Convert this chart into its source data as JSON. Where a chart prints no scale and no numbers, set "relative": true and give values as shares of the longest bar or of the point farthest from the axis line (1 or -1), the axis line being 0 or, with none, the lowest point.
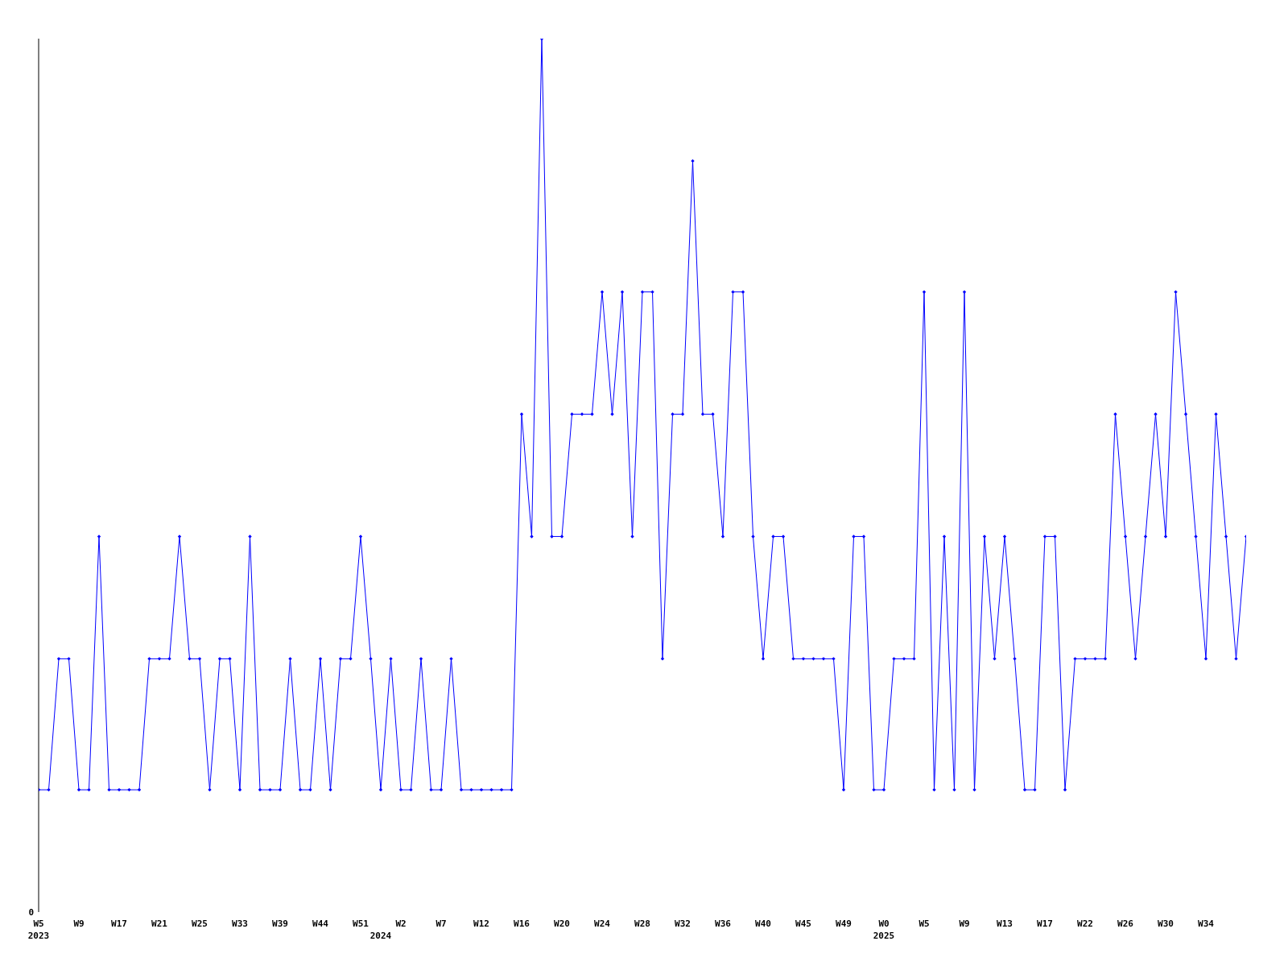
{
  "chart_data": {
    "type": "line",
    "relative": true,
    "annotations": [
      "0"
    ],
    "grid": false,
    "legend": false,
    "marker": "diamond",
    "line_style": "solid",
    "categories": [
      "W5\n2023",
      null,
      null,
      null,
      "W9",
      null,
      null,
      null,
      "W17",
      null,
      null,
      null,
      "W21",
      null,
      null,
      null,
      "W25",
      null,
      null,
      null,
      "W33",
      null,
      null,
      null,
      "W39",
      null,
      null,
      null,
      "W44",
      null,
      null,
      null,
      "W51",
      null,
      "\n2024",
      null,
      "W2",
      null,
      null,
      null,
      "W7",
      null,
      null,
      null,
      "W12",
      null,
      null,
      null,
      "W16",
      null,
      null,
      null,
      "W20",
      null,
      null,
      null,
      "W24",
      null,
      null,
      null,
      "W28",
      null,
      null,
      null,
      "W32",
      null,
      null,
      null,
      "W36",
      null,
      null,
      null,
      "W40",
      null,
      null,
      null,
      "W45",
      null,
      null,
      null,
      "W49",
      null,
      null,
      null,
      "W0\n2025",
      null,
      null,
      null,
      "W5",
      null,
      null,
      null,
      "W9",
      null,
      null,
      null,
      "W13",
      null,
      null,
      null,
      "W17",
      null,
      null,
      null,
      "W22",
      null,
      null,
      null,
      "W26",
      null,
      null,
      null,
      "W30",
      null,
      null,
      null,
      "W34",
      null,
      null,
      null,
      null
    ],
    "series": [
      {
        "color": "#0000ff",
        "values": [
          0.14,
          0.14,
          0.29,
          0.29,
          0.14,
          0.14,
          0.43,
          0.14,
          0.14,
          0.14,
          0.14,
          0.29,
          0.29,
          0.29,
          0.43,
          0.29,
          0.29,
          0.14,
          0.29,
          0.29,
          0.14,
          0.43,
          0.14,
          0.14,
          0.14,
          0.29,
          0.14,
          0.14,
          0.29,
          0.14,
          0.29,
          0.29,
          0.43,
          0.29,
          0.14,
          0.29,
          0.14,
          0.14,
          0.29,
          0.14,
          0.14,
          0.29,
          0.14,
          0.14,
          0.14,
          0.14,
          0.14,
          0.14,
          0.57,
          0.43,
          1,
          0.43,
          0.43,
          0.57,
          0.57,
          0.57,
          0.71,
          0.57,
          0.71,
          0.43,
          0.71,
          0.71,
          0.29,
          0.57,
          0.57,
          0.86,
          0.57,
          0.57,
          0.43,
          0.71,
          0.71,
          0.43,
          0.29,
          0.43,
          0.43,
          0.29,
          0.29,
          0.29,
          0.29,
          0.29,
          0.14,
          0.43,
          0.43,
          0.14,
          0.14,
          0.29,
          0.29,
          0.29,
          0.71,
          0.14,
          0.43,
          0.14,
          0.71,
          0.14,
          0.43,
          0.29,
          0.43,
          0.29,
          0.14,
          0.14,
          0.43,
          0.43,
          0.14,
          0.29,
          0.29,
          0.29,
          0.29,
          0.57,
          0.43,
          0.29,
          0.43,
          0.57,
          0.43,
          0.71,
          0.57,
          0.43,
          0.29,
          0.57,
          0.43,
          0.29,
          0.43
        ]
      }
    ]
  }
}
